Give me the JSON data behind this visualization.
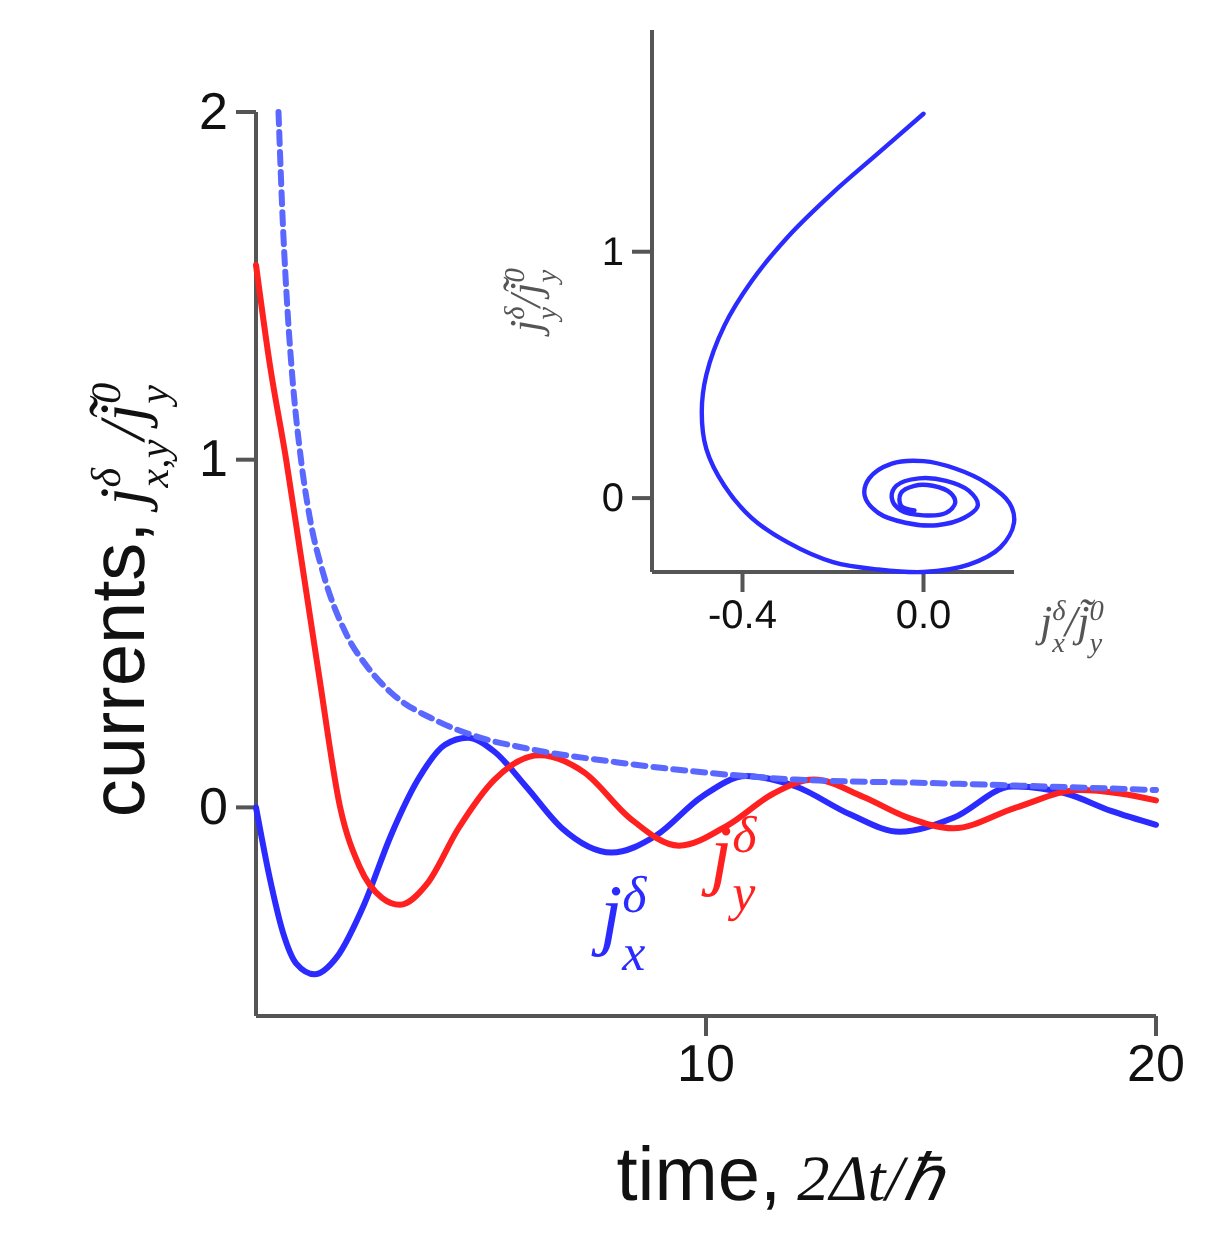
{
  "chart_data": [
    {
      "type": "line",
      "xlabel": "time,  2Δt/ℏ",
      "ylabel": "currents,  j$^{δ}$$_{x,y}$/j̃$^{0}$$_{y}$",
      "xlim": [
        0,
        20
      ],
      "xticks": [
        10,
        20
      ],
      "ylim": [
        -0.6,
        2
      ],
      "yticks": [
        0,
        1,
        2
      ],
      "grid": false,
      "series": [
        {
          "name": "j$^{δ}$$_{x}$",
          "color": "#2b2bff",
          "x": [
            0,
            0.3,
            0.6,
            0.9,
            1.3,
            1.8,
            2.4,
            3,
            3.6,
            4.2,
            4.7,
            5.3,
            6,
            6.8,
            7.9,
            8.9,
            9.9,
            10.9,
            12,
            13.2,
            14.3,
            15.5,
            16.8,
            18,
            19,
            20
          ],
          "values": [
            0,
            -0.2,
            -0.36,
            -0.45,
            -0.48,
            -0.43,
            -0.28,
            -0.08,
            0.08,
            0.18,
            0.2,
            0.16,
            0.06,
            -0.06,
            -0.13,
            -0.08,
            0.03,
            0.09,
            0.06,
            -0.02,
            -0.07,
            -0.03,
            0.06,
            0.04,
            -0.01,
            -0.05
          ]
        },
        {
          "name": "j$^{δ}$$_{y}$",
          "color": "#ff2020",
          "x": [
            0,
            0.3,
            0.67,
            1,
            1.4,
            1.87,
            2.3,
            2.8,
            3.2,
            3.8,
            4.5,
            5.3,
            6.3,
            7.3,
            8.3,
            9.4,
            10.5,
            11.5,
            12.4,
            13.5,
            14.5,
            15.5,
            16.9,
            18.3,
            19.2,
            20
          ],
          "values": [
            1.56,
            1.28,
            1,
            0.72,
            0.38,
            0,
            -0.17,
            -0.26,
            -0.28,
            -0.22,
            -0.06,
            0.08,
            0.15,
            0.1,
            -0.03,
            -0.11,
            -0.05,
            0.04,
            0.08,
            0.03,
            -0.03,
            -0.06,
            0,
            0.05,
            0.04,
            0.02
          ]
        },
        {
          "type": "line",
          "color": "#5a68ff",
          "line_style": "dashed",
          "x": [
            0.5,
            0.6,
            0.7,
            0.8,
            1,
            1.2,
            1.5,
            2,
            2.5,
            3,
            4,
            5,
            6,
            8,
            10,
            12,
            15,
            20
          ],
          "values": [
            2,
            1.67,
            1.43,
            1.25,
            1,
            0.83,
            0.67,
            0.5,
            0.4,
            0.33,
            0.25,
            0.2,
            0.17,
            0.13,
            0.1,
            0.08,
            0.07,
            0.05
          ]
        }
      ]
    },
    {
      "type": "line",
      "xlabel": "j$^{δ}$$_{x}$/j̃$^{0}$$_{y}$",
      "ylabel": "j$^{δ}$$_{y}$/j̃$^{0}$$_{y}$",
      "xlim": [
        -0.6,
        0.2
      ],
      "xticks": [
        {
          "value": -0.4,
          "label": "-0.4"
        },
        {
          "value": 0,
          "label": "0.0"
        }
      ],
      "ylim": [
        -0.3,
        1.9
      ],
      "yticks": [
        0,
        1
      ],
      "grid": false,
      "series": [
        {
          "color": "#2b2bff",
          "x": [
            0,
            -0.1,
            -0.2,
            -0.3,
            -0.38,
            -0.44,
            -0.48,
            -0.49,
            -0.48,
            -0.44,
            -0.38,
            -0.3,
            -0.2,
            -0.1,
            0,
            0.1,
            0.17,
            0.2,
            0.19,
            0.14,
            0.07,
            0,
            -0.07,
            -0.12,
            -0.13,
            -0.1,
            -0.04,
            0.03,
            0.09,
            0.12,
            0.1,
            0.05,
            -0.01,
            -0.06,
            -0.07,
            -0.05,
            0,
            0.05,
            0.07,
            0.06,
            0.02,
            -0.02,
            -0.05,
            -0.05,
            -0.02
          ],
          "values": [
            1.56,
            1.4,
            1.24,
            1.06,
            0.88,
            0.7,
            0.5,
            0.35,
            0.2,
            0.05,
            -0.08,
            -0.18,
            -0.26,
            -0.29,
            -0.3,
            -0.27,
            -0.2,
            -0.1,
            -0.02,
            0.06,
            0.12,
            0.15,
            0.14,
            0.08,
            0.01,
            -0.06,
            -0.1,
            -0.11,
            -0.08,
            -0.03,
            0.03,
            0.07,
            0.08,
            0.05,
            0,
            -0.05,
            -0.07,
            -0.06,
            -0.02,
            0.02,
            0.05,
            0.05,
            0.02,
            -0.03,
            -0.05
          ]
        }
      ]
    }
  ]
}
